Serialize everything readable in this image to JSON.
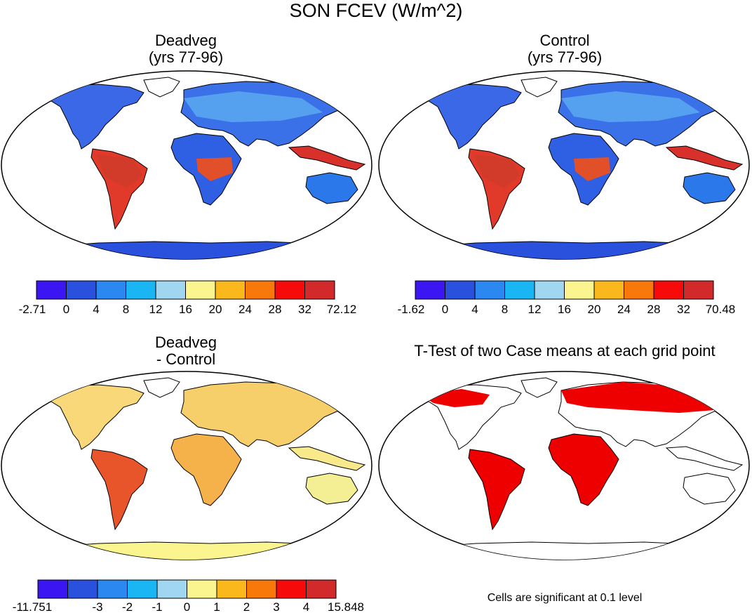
{
  "figure_title": "SON FCEV (W/m^2)",
  "panels": [
    {
      "id": "deadveg",
      "title_line1": "Deadveg",
      "title_line2": "(yrs 77-96)",
      "colorbar": {
        "colors": [
          "#3b16f2",
          "#2a50de",
          "#2a88f0",
          "#1ab6f3",
          "#a0d6ef",
          "#fbf58f",
          "#fbb81c",
          "#f8780a",
          "#f60a0a",
          "#d22a2a"
        ],
        "labels": [
          "-2.71",
          "0",
          "4",
          "8",
          "12",
          "16",
          "20",
          "24",
          "28",
          "32",
          "72.12"
        ]
      }
    },
    {
      "id": "control",
      "title_line1": "Control",
      "title_line2": "(yrs 77-96)",
      "colorbar": {
        "colors": [
          "#3b16f2",
          "#2a50de",
          "#2a88f0",
          "#1ab6f3",
          "#a0d6ef",
          "#fbf58f",
          "#fbb81c",
          "#f8780a",
          "#f60a0a",
          "#d22a2a"
        ],
        "labels": [
          "-1.62",
          "0",
          "4",
          "8",
          "12",
          "16",
          "20",
          "24",
          "28",
          "32",
          "70.48"
        ]
      }
    },
    {
      "id": "difference",
      "title_line1": "Deadveg",
      "title_line2": "- Control",
      "colorbar": {
        "colors": [
          "#3b16f2",
          "#2a50de",
          "#2a88f0",
          "#1ab6f3",
          "#a0d6ef",
          "#fbf58f",
          "#fbb81c",
          "#f8780a",
          "#f60a0a",
          "#d22a2a"
        ],
        "labels": [
          "-11.751",
          "",
          "-3",
          "-2",
          "-1",
          "0",
          "1",
          "2",
          "3",
          "4",
          "15.848"
        ]
      }
    },
    {
      "id": "ttest",
      "title_line1": "T-Test of two Case means at each grid point",
      "note": "Cells are significant at 0.1 level",
      "significance_color": "#ee0000"
    }
  ],
  "map_colors": {
    "frame": "#000000",
    "ocean": "#ffffff"
  }
}
